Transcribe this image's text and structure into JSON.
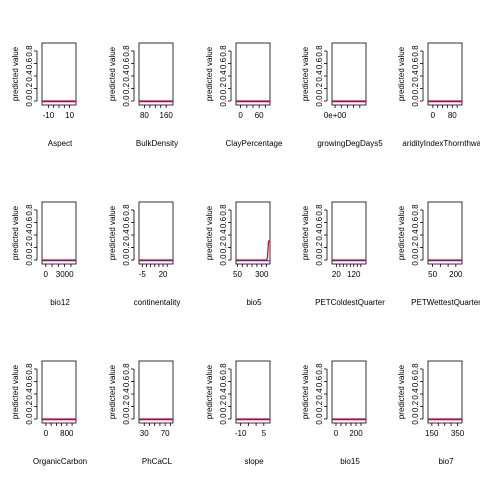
{
  "chart_data": [
    {
      "type": "line",
      "xlabel": "Aspect",
      "ylabel": "predicted value",
      "ylim": [
        0,
        1
      ],
      "y_ticks": [
        "0.0",
        "0.2",
        "0.4",
        "0.6",
        "0.8"
      ],
      "xlim": [
        -16,
        16
      ],
      "x_ticks": [
        {
          "label": "-10",
          "value": -10
        },
        {
          "label": "10",
          "value": 10
        }
      ],
      "minor_ticks": [
        -10,
        -5,
        0,
        5,
        10
      ],
      "series": [
        {
          "x": [
            -16,
            16
          ],
          "y": [
            0.0,
            0.0
          ]
        }
      ]
    },
    {
      "type": "line",
      "xlabel": "BulkDensity",
      "ylabel": "predicted value",
      "ylim": [
        0,
        1
      ],
      "y_ticks": [
        "0.0",
        "0.2",
        "0.4",
        "0.6",
        "0.8"
      ],
      "xlim": [
        60,
        185
      ],
      "x_ticks": [
        {
          "label": "80",
          "value": 80
        },
        {
          "label": "160",
          "value": 160
        }
      ],
      "minor_ticks": [
        80,
        100,
        120,
        140,
        160
      ],
      "series": [
        {
          "x": [
            60,
            185
          ],
          "y": [
            0.0,
            0.0
          ]
        }
      ]
    },
    {
      "type": "line",
      "xlabel": "ClayPercentage",
      "ylabel": "predicted value",
      "ylim": [
        0,
        1
      ],
      "y_ticks": [
        "0.0",
        "0.2",
        "0.4",
        "0.6",
        "0.8"
      ],
      "xlim": [
        -15,
        95
      ],
      "x_ticks": [
        {
          "label": "0",
          "value": 0
        },
        {
          "label": "60",
          "value": 60
        }
      ],
      "minor_ticks": [
        0,
        20,
        40,
        60,
        80
      ],
      "series": [
        {
          "x": [
            -15,
            95
          ],
          "y": [
            0.0,
            0.0
          ]
        }
      ]
    },
    {
      "type": "line",
      "xlabel": "growingDegDays5",
      "ylabel": "predicted value",
      "ylim": [
        0,
        1
      ],
      "y_ticks": [
        "0.0",
        "0.2",
        "0.4",
        "0.6",
        "0.8"
      ],
      "xlim": [
        -1000,
        10000
      ],
      "x_ticks": [
        {
          "label": "0e+00",
          "value": 0
        }
      ],
      "minor_ticks": [
        0,
        2000,
        4000,
        6000,
        8000
      ],
      "series": [
        {
          "x": [
            -1000,
            10000
          ],
          "y": [
            0.0,
            0.0
          ]
        }
      ]
    },
    {
      "type": "line",
      "xlabel": "aridityIndexThornthwaite",
      "ylabel": "predicted value",
      "ylim": [
        0,
        1
      ],
      "y_ticks": [
        "0.0",
        "0.2",
        "0.4",
        "0.6",
        "0.8"
      ],
      "xlim": [
        -20,
        120
      ],
      "x_ticks": [
        {
          "label": "0",
          "value": 0
        },
        {
          "label": "80",
          "value": 80
        }
      ],
      "minor_ticks": [
        0,
        20,
        40,
        60,
        80,
        100
      ],
      "series": [
        {
          "x": [
            -20,
            120
          ],
          "y": [
            0.0,
            0.0
          ]
        }
      ]
    },
    {
      "type": "line",
      "xlabel": "bio12",
      "ylabel": "predicted value",
      "ylim": [
        0,
        1
      ],
      "y_ticks": [
        "0.0",
        "0.2",
        "0.4",
        "0.6",
        "0.8"
      ],
      "xlim": [
        -600,
        4800
      ],
      "x_ticks": [
        {
          "label": "0",
          "value": 0
        },
        {
          "label": "3000",
          "value": 3000
        }
      ],
      "minor_ticks": [
        0,
        1000,
        2000,
        3000,
        4000
      ],
      "series": [
        {
          "x": [
            -600,
            4800
          ],
          "y": [
            0.0,
            0.0
          ]
        }
      ]
    },
    {
      "type": "line",
      "xlabel": "continentality",
      "ylabel": "predicted value",
      "ylim": [
        0,
        1
      ],
      "y_ticks": [
        "0.0",
        "0.2",
        "0.4",
        "0.6",
        "0.8"
      ],
      "xlim": [
        -9,
        32
      ],
      "x_ticks": [
        {
          "label": "-5",
          "value": -5
        },
        {
          "label": "20",
          "value": 20
        }
      ],
      "minor_ticks": [
        -5,
        0,
        5,
        10,
        15,
        20,
        25
      ],
      "series": [
        {
          "x": [
            -9,
            32
          ],
          "y": [
            0.0,
            0.0
          ]
        }
      ]
    },
    {
      "type": "line",
      "xlabel": "bio5",
      "ylabel": "predicted value",
      "ylim": [
        0,
        1
      ],
      "y_ticks": [
        "0.0",
        "0.2",
        "0.4",
        "0.6",
        "0.8"
      ],
      "xlim": [
        35,
        385
      ],
      "x_ticks": [
        {
          "label": "50",
          "value": 50
        },
        {
          "label": "300",
          "value": 300
        }
      ],
      "minor_ticks": [
        50,
        100,
        150,
        200,
        250,
        300,
        350
      ],
      "series": [
        {
          "x": [
            35,
            340,
            350,
            358,
            362,
            366,
            370,
            385
          ],
          "y": [
            0.0,
            0.0,
            0.005,
            0.03,
            0.1,
            0.2,
            0.3,
            0.31
          ]
        }
      ]
    },
    {
      "type": "line",
      "xlabel": "PETColdestQuarter",
      "ylabel": "predicted value",
      "ylim": [
        0,
        1
      ],
      "y_ticks": [
        "0.0",
        "0.2",
        "0.4",
        "0.6",
        "0.8"
      ],
      "xlim": [
        -5,
        190
      ],
      "x_ticks": [
        {
          "label": "20",
          "value": 20
        },
        {
          "label": "120",
          "value": 120
        }
      ],
      "minor_ticks": [
        20,
        40,
        60,
        80,
        100,
        120,
        140,
        160
      ],
      "series": [
        {
          "x": [
            -5,
            190
          ],
          "y": [
            0.0,
            0.0
          ]
        }
      ]
    },
    {
      "type": "line",
      "xlabel": "PETWettestQuarter",
      "ylabel": "predicted value",
      "ylim": [
        0,
        1
      ],
      "y_ticks": [
        "0.0",
        "0.2",
        "0.4",
        "0.6",
        "0.8"
      ],
      "xlim": [
        20,
        240
      ],
      "x_ticks": [
        {
          "label": "50",
          "value": 50
        },
        {
          "label": "200",
          "value": 200
        }
      ],
      "minor_ticks": [
        50,
        100,
        150,
        200
      ],
      "series": [
        {
          "x": [
            20,
            240
          ],
          "y": [
            0.0,
            0.0
          ]
        }
      ]
    },
    {
      "type": "line",
      "xlabel": "OrganicCarbon",
      "ylabel": "predicted value",
      "ylim": [
        0,
        1
      ],
      "y_ticks": [
        "0.0",
        "0.2",
        "0.4",
        "0.6",
        "0.8"
      ],
      "xlim": [
        -150,
        1150
      ],
      "x_ticks": [
        {
          "label": "0",
          "value": 0
        },
        {
          "label": "800",
          "value": 800
        }
      ],
      "minor_ticks": [
        0,
        200,
        400,
        600,
        800,
        1000
      ],
      "series": [
        {
          "x": [
            -150,
            1150
          ],
          "y": [
            0.0,
            0.0
          ]
        }
      ]
    },
    {
      "type": "line",
      "xlabel": "PhCaCL",
      "ylabel": "predicted value",
      "ylim": [
        0,
        1
      ],
      "y_ticks": [
        "0.0",
        "0.2",
        "0.4",
        "0.6",
        "0.8"
      ],
      "xlim": [
        20,
        85
      ],
      "x_ticks": [
        {
          "label": "30",
          "value": 30
        },
        {
          "label": "70",
          "value": 70
        }
      ],
      "minor_ticks": [
        30,
        40,
        50,
        60,
        70,
        80
      ],
      "series": [
        {
          "x": [
            20,
            85
          ],
          "y": [
            0.0,
            0.0
          ]
        }
      ]
    },
    {
      "type": "line",
      "xlabel": "slope",
      "ylabel": "predicted value",
      "ylim": [
        0,
        1
      ],
      "y_ticks": [
        "0.0",
        "0.2",
        "0.4",
        "0.6",
        "0.8"
      ],
      "xlim": [
        -13,
        9
      ],
      "x_ticks": [
        {
          "label": "-10",
          "value": -10
        },
        {
          "label": "5",
          "value": 5
        }
      ],
      "minor_ticks": [
        -10,
        -5,
        0,
        5
      ],
      "series": [
        {
          "x": [
            -13,
            9
          ],
          "y": [
            0.0,
            0.0
          ]
        }
      ]
    },
    {
      "type": "line",
      "xlabel": "bio15",
      "ylabel": "predicted value",
      "ylim": [
        0,
        1
      ],
      "y_ticks": [
        "0.0",
        "0.2",
        "0.4",
        "0.6",
        "0.8"
      ],
      "xlim": [
        -40,
        300
      ],
      "x_ticks": [
        {
          "label": "0",
          "value": 0
        },
        {
          "label": "200",
          "value": 200
        }
      ],
      "minor_ticks": [
        0,
        50,
        100,
        150,
        200,
        250
      ],
      "series": [
        {
          "x": [
            -40,
            300
          ],
          "y": [
            0.0,
            0.0
          ]
        }
      ]
    },
    {
      "type": "line",
      "xlabel": "bio7",
      "ylabel": "predicted value",
      "ylim": [
        0,
        1
      ],
      "y_ticks": [
        "0.0",
        "0.2",
        "0.4",
        "0.6",
        "0.8"
      ],
      "xlim": [
        120,
        385
      ],
      "x_ticks": [
        {
          "label": "150",
          "value": 150
        },
        {
          "label": "350",
          "value": 350
        }
      ],
      "minor_ticks": [
        150,
        200,
        250,
        300,
        350
      ],
      "series": [
        {
          "x": [
            120,
            385
          ],
          "y": [
            0.0,
            0.0
          ]
        }
      ]
    }
  ],
  "colors": {
    "line": "#e5002b",
    "rug": "#1f1fc8",
    "frame": "#000000"
  }
}
